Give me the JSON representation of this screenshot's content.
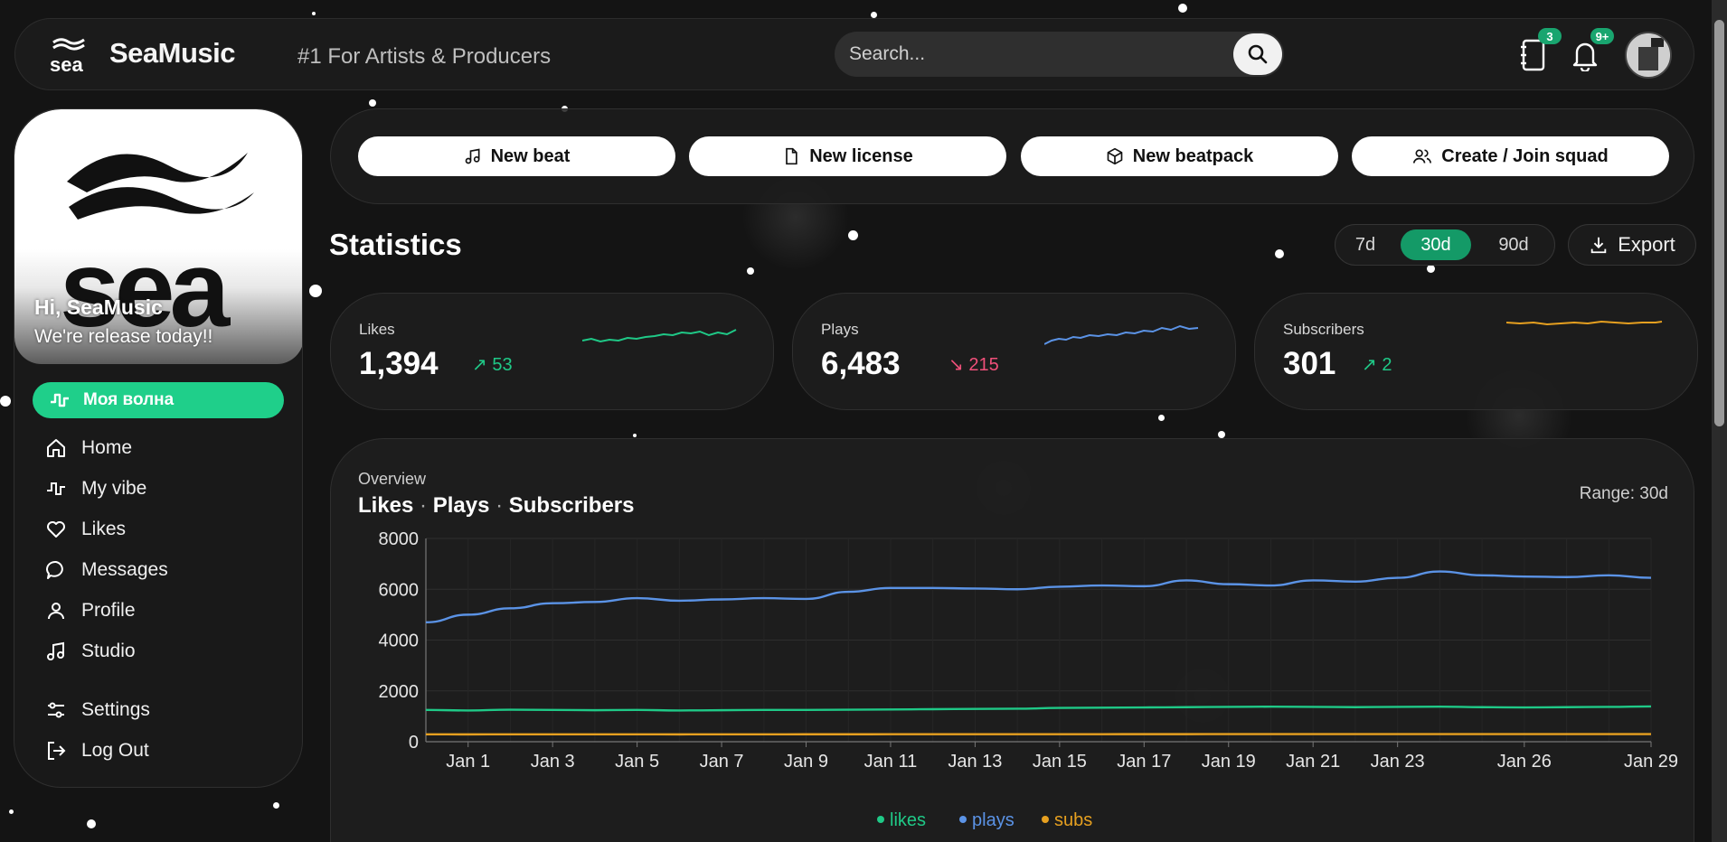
{
  "header": {
    "brand": "SeaMusic",
    "tagline": "#1 For Artists & Producers",
    "search_placeholder": "Search...",
    "notebook_badge": "3",
    "bell_badge": "9+"
  },
  "sidebar": {
    "greeting": "Hi, SeaMusic",
    "status": "We're release today!!",
    "wave_label": "Моя волна",
    "items": [
      {
        "label": "Home",
        "icon": "home-icon"
      },
      {
        "label": "My vibe",
        "icon": "pulse-icon"
      },
      {
        "label": "Likes",
        "icon": "heart-icon"
      },
      {
        "label": "Messages",
        "icon": "chat-icon"
      },
      {
        "label": "Profile",
        "icon": "user-icon"
      },
      {
        "label": "Studio",
        "icon": "music-note-icon"
      },
      {
        "label": "Settings",
        "icon": "sliders-icon"
      },
      {
        "label": "Log Out",
        "icon": "logout-icon"
      }
    ]
  },
  "actions": {
    "new_beat": "New beat",
    "new_license": "New license",
    "new_beatpack": "New beatpack",
    "squad": "Create / Join squad"
  },
  "statistics": {
    "title": "Statistics",
    "ranges": [
      "7d",
      "30d",
      "90d"
    ],
    "active_range": "30d",
    "export": "Export"
  },
  "metrics": [
    {
      "label": "Likes",
      "value": "1,394",
      "delta": "53",
      "direction": "up",
      "color": "#1fc987"
    },
    {
      "label": "Plays",
      "value": "6,483",
      "delta": "215",
      "direction": "down",
      "color": "#5b93e6"
    },
    {
      "label": "Subscribers",
      "value": "301",
      "delta": "2",
      "direction": "up",
      "color": "#e6a020"
    }
  ],
  "overview": {
    "subtitle": "Overview",
    "title_parts": [
      "Likes",
      "Plays",
      "Subscribers"
    ],
    "range": "Range: 30d"
  },
  "chart_data": {
    "type": "line",
    "ylim": [
      0,
      8000
    ],
    "y_ticks": [
      "0",
      "2000",
      "4000",
      "6000",
      "8000"
    ],
    "x_labels": [
      "Jan 1",
      "Jan 3",
      "Jan 5",
      "Jan 7",
      "Jan 9",
      "Jan 11",
      "Jan 13",
      "Jan 15",
      "Jan 17",
      "Jan 19",
      "Jan 21",
      "Jan 23",
      "Jan 26",
      "Jan 29"
    ],
    "x_label_days": [
      1,
      3,
      5,
      7,
      9,
      11,
      13,
      15,
      17,
      19,
      21,
      23,
      26,
      29
    ],
    "legend": [
      "likes",
      "plays",
      "subs"
    ],
    "grid": true,
    "series": [
      {
        "name": "plays",
        "color": "#5b93e6",
        "days": [
          0,
          1,
          2,
          3,
          4,
          5,
          6,
          7,
          8,
          9,
          10,
          11,
          12,
          13,
          14,
          15,
          16,
          17,
          18,
          19,
          20,
          21,
          22,
          23,
          24,
          25,
          26,
          27,
          28,
          29
        ],
        "values": [
          4700,
          5000,
          5250,
          5450,
          5500,
          5650,
          5550,
          5600,
          5650,
          5620,
          5900,
          6050,
          6050,
          6030,
          6000,
          6100,
          6150,
          6120,
          6350,
          6200,
          6150,
          6350,
          6300,
          6450,
          6700,
          6550,
          6500,
          6480,
          6550,
          6450
        ]
      },
      {
        "name": "likes",
        "color": "#1fc987",
        "days": [
          0,
          1,
          2,
          3,
          4,
          5,
          6,
          7,
          8,
          9,
          10,
          11,
          12,
          13,
          14,
          15,
          16,
          17,
          18,
          19,
          20,
          21,
          22,
          23,
          24,
          25,
          26,
          27,
          28,
          29
        ],
        "values": [
          1250,
          1230,
          1260,
          1250,
          1240,
          1250,
          1230,
          1240,
          1250,
          1250,
          1260,
          1270,
          1280,
          1290,
          1300,
          1330,
          1340,
          1350,
          1360,
          1370,
          1380,
          1370,
          1360,
          1370,
          1380,
          1360,
          1350,
          1360,
          1370,
          1390
        ]
      },
      {
        "name": "subs",
        "color": "#e6a020",
        "days": [
          0,
          1,
          2,
          3,
          4,
          5,
          6,
          7,
          8,
          9,
          10,
          11,
          12,
          13,
          14,
          15,
          16,
          17,
          18,
          19,
          20,
          21,
          22,
          23,
          24,
          25,
          26,
          27,
          28,
          29
        ],
        "values": [
          290,
          289,
          290,
          291,
          290,
          290,
          289,
          291,
          292,
          293,
          293,
          294,
          294,
          295,
          296,
          297,
          297,
          298,
          298,
          299,
          299,
          300,
          300,
          299,
          300,
          300,
          300,
          301,
          301,
          301
        ]
      }
    ]
  }
}
